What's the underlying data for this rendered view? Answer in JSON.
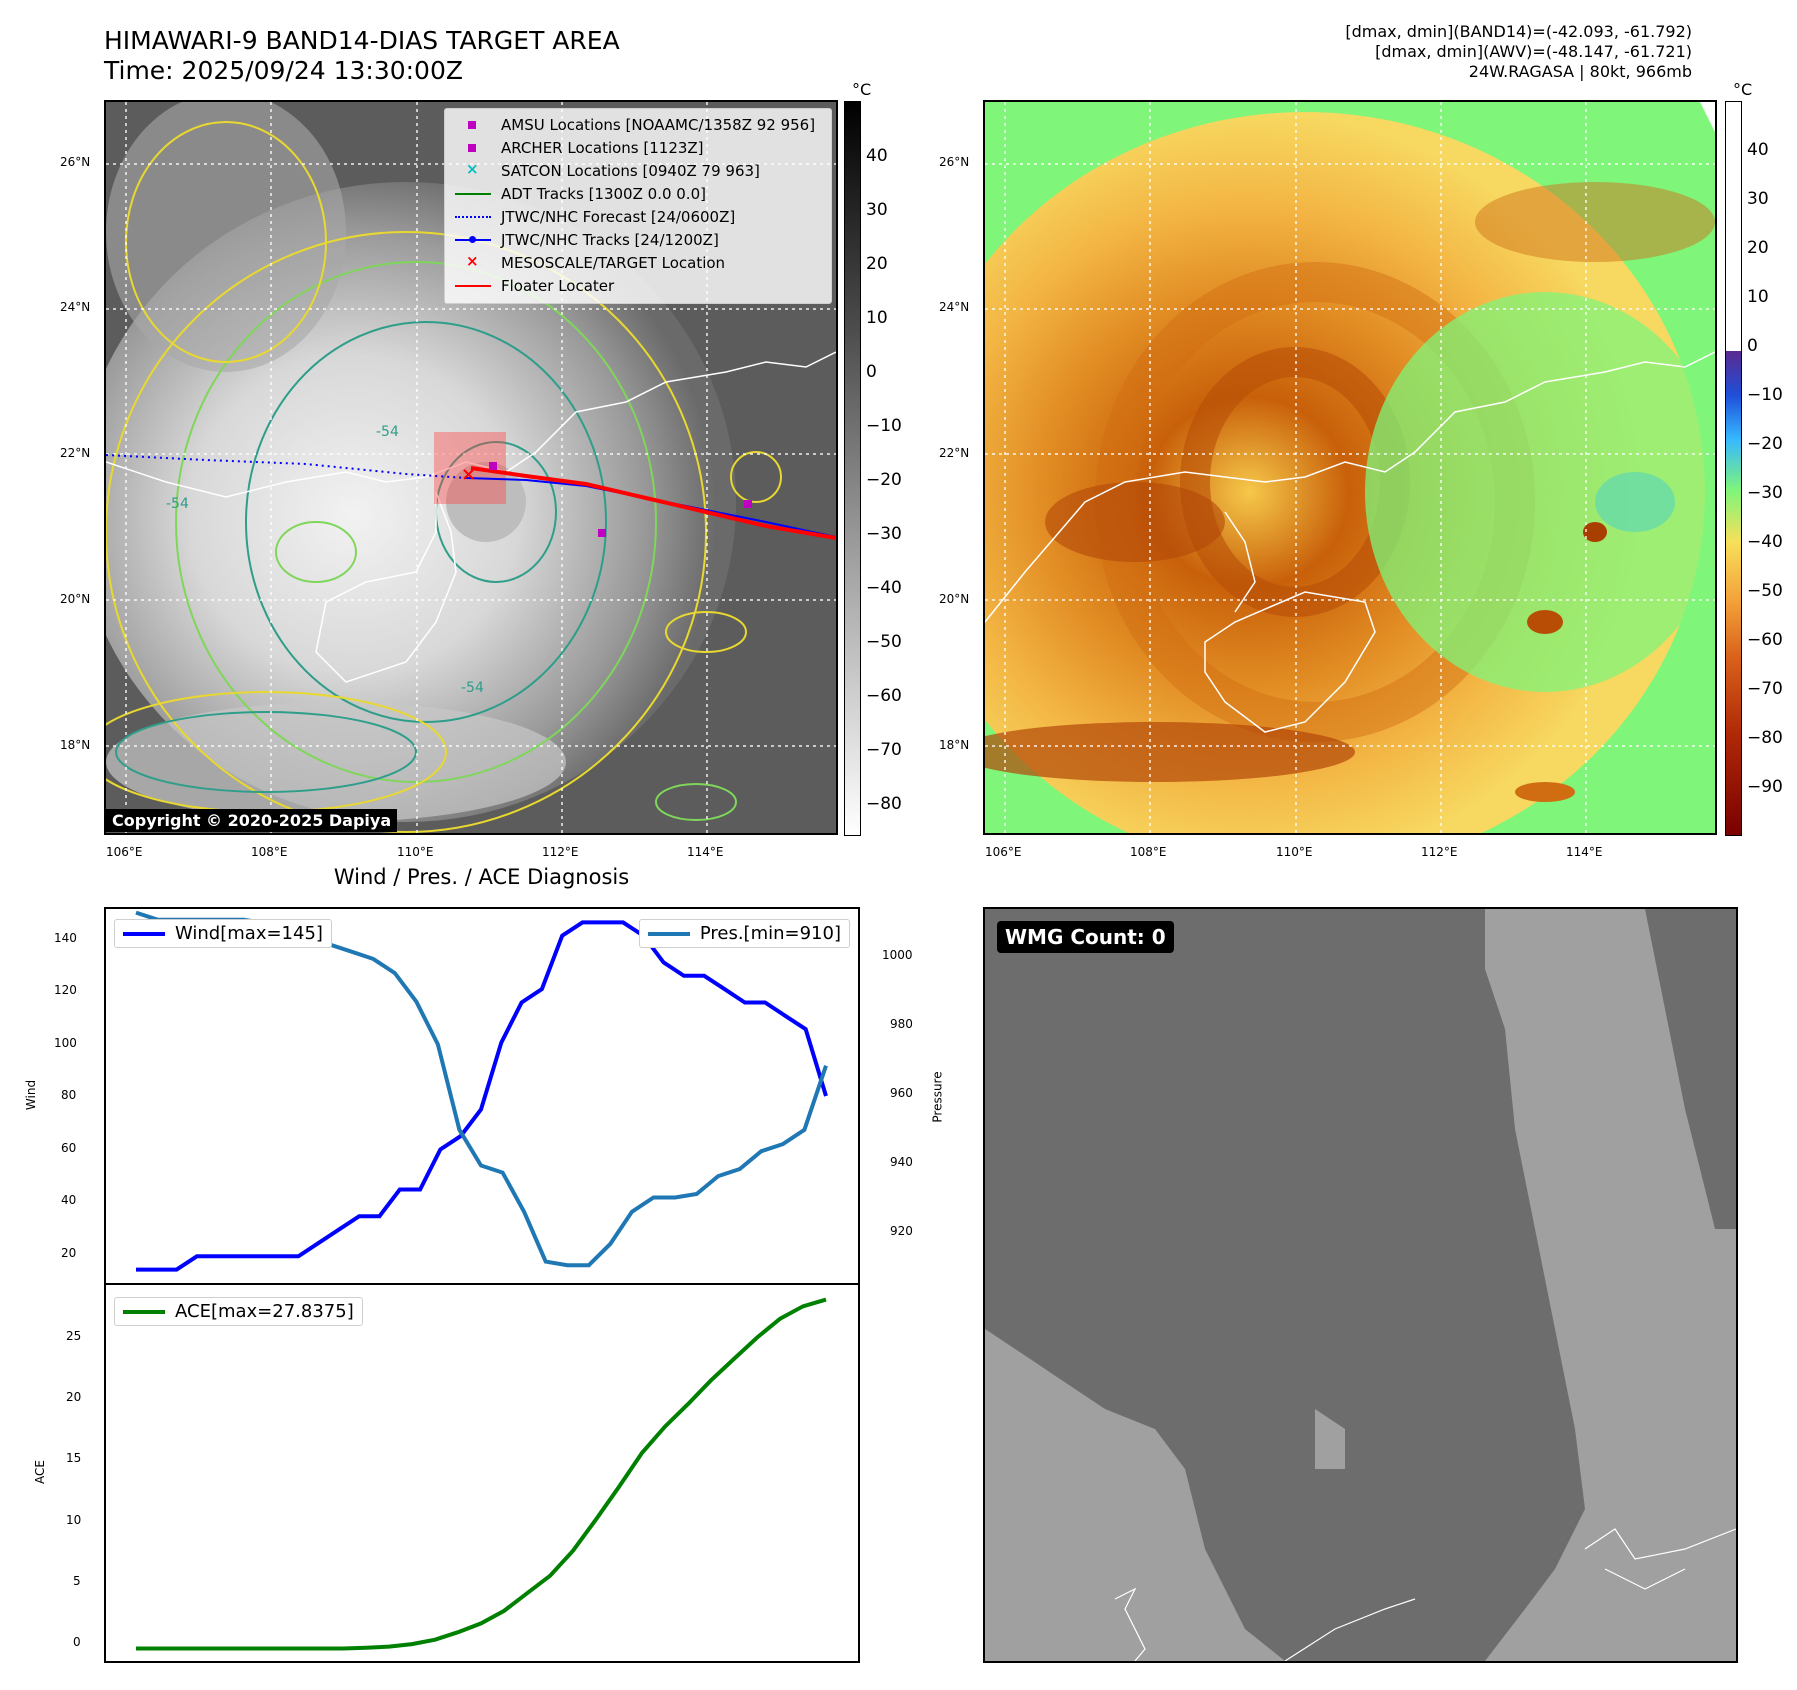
{
  "header": {
    "title_line1": "HIMAWARI-9 BAND14-DIAS TARGET AREA",
    "title_line2": "Time: 2025/09/24 13:30:00Z",
    "info_line1": "[dmax, dmin](BAND14)=(-42.093, -61.792)",
    "info_line2": "[dmax, dmin](AWV)=(-48.147, -61.721)",
    "info_line3": "24W.RAGASA | 80kt, 966mb"
  },
  "map_axes": {
    "lat_ticks": [
      "26°N",
      "24°N",
      "22°N",
      "20°N",
      "18°N"
    ],
    "lon_ticks": [
      "106°E",
      "108°E",
      "110°E",
      "112°E",
      "114°E"
    ]
  },
  "map_left": {
    "legend": [
      {
        "label": "AMSU Locations [NOAAMC/1358Z 92 956]",
        "symbol": "square",
        "color": "#c000c0"
      },
      {
        "label": "ARCHER Locations [1123Z]",
        "symbol": "square",
        "color": "#c000c0"
      },
      {
        "label": "SATCON Locations [0940Z 79 963]",
        "symbol": "x",
        "color": "#00c0c0"
      },
      {
        "label": "ADT Tracks [1300Z 0.0 0.0]",
        "symbol": "line",
        "color": "#008000"
      },
      {
        "label": "JTWC/NHC Forecast [24/0600Z]",
        "symbol": "dotted",
        "color": "#0000ff"
      },
      {
        "label": "JTWC/NHC Tracks [24/1200Z]",
        "symbol": "line-dot",
        "color": "#0000ff"
      },
      {
        "label": "MESOSCALE/TARGET Location",
        "symbol": "x",
        "color": "#ff0000"
      },
      {
        "label": "Floater Locater",
        "symbol": "line",
        "color": "#ff0000"
      }
    ],
    "copyright": "Copyright © 2020-2025 Dapiya",
    "contour_label": "-54",
    "colorbar_unit": "°C",
    "colorbar_ticks": [
      "40",
      "30",
      "20",
      "10",
      "0",
      "−10",
      "−20",
      "−30",
      "−40",
      "−50",
      "−60",
      "−70",
      "−80"
    ]
  },
  "map_right": {
    "colorbar_unit": "°C",
    "colorbar_ticks": [
      "40",
      "30",
      "20",
      "10",
      "0",
      "−10",
      "−20",
      "−30",
      "−40",
      "−50",
      "−60",
      "−70",
      "−80",
      "−90"
    ]
  },
  "diag": {
    "title": "Wind / Pres. / ACE Diagnosis",
    "wind_ylabel": "Wind",
    "pres_ylabel": "Pressure",
    "ace_ylabel": "ACE",
    "wind_legend": "Wind[max=145]",
    "pres_legend": "Pres.[min=910]",
    "ace_legend": "ACE[max=27.8375]",
    "wind_ticks": [
      "140",
      "120",
      "100",
      "80",
      "60",
      "40",
      "20"
    ],
    "pres_ticks": [
      "1000",
      "980",
      "960",
      "940",
      "920"
    ],
    "ace_ticks": [
      "25",
      "20",
      "15",
      "10",
      "5",
      "0"
    ],
    "wind_color": "#0000ff",
    "pres_color": "#1f77b4",
    "ace_color": "#008000"
  },
  "wmg": {
    "label": "WMG Count: 0"
  },
  "chart_data": [
    {
      "type": "line",
      "title": "Wind / Pres. / ACE Diagnosis",
      "ylabel": "Wind",
      "ylim": [
        10,
        150
      ],
      "series": [
        {
          "name": "Wind[max=145]",
          "values": [
            15,
            15,
            15,
            20,
            20,
            20,
            20,
            20,
            20,
            25,
            30,
            35,
            35,
            45,
            45,
            60,
            65,
            75,
            100,
            115,
            120,
            140,
            145,
            145,
            145,
            140,
            130,
            125,
            125,
            120,
            115,
            115,
            110,
            105,
            80
          ]
        }
      ]
    },
    {
      "type": "line",
      "ylabel": "Pressure",
      "ylim": [
        905,
        1010
      ],
      "series": [
        {
          "name": "Pres.[min=910]",
          "values": [
            1009,
            1007,
            1007,
            1007,
            1007,
            1007,
            1006,
            1004,
            1003,
            1000,
            998,
            996,
            992,
            984,
            972,
            948,
            938,
            936,
            925,
            911,
            910,
            910,
            916,
            925,
            929,
            929,
            930,
            935,
            937,
            942,
            944,
            948,
            966
          ]
        }
      ]
    },
    {
      "type": "line",
      "ylabel": "ACE",
      "ylim": [
        -1,
        29
      ],
      "series": [
        {
          "name": "ACE[max=27.8375]",
          "values": [
            0,
            0,
            0,
            0,
            0,
            0,
            0,
            0,
            0,
            0,
            0.05,
            0.15,
            0.35,
            0.7,
            1.3,
            2.0,
            3.0,
            4.4,
            5.8,
            7.8,
            10.3,
            12.9,
            15.6,
            17.7,
            19.5,
            21.4,
            23.1,
            24.8,
            26.3,
            27.3,
            27.8375
          ]
        }
      ]
    }
  ]
}
